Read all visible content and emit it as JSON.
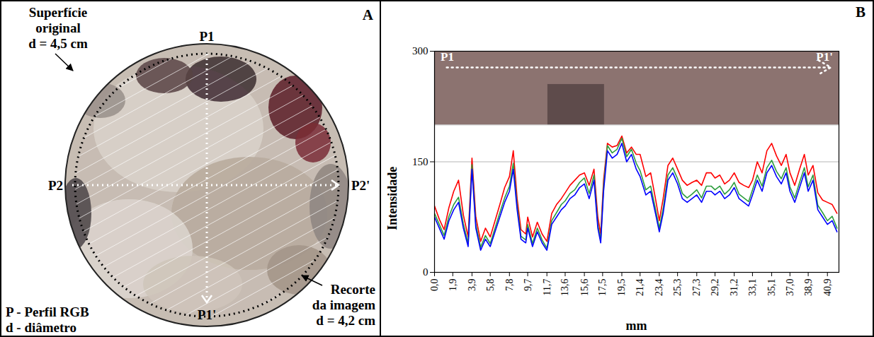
{
  "diagram": {
    "panel_label": "A",
    "original_surface": {
      "lines": [
        "Superfície",
        "original",
        "d = 4,5 cm"
      ]
    },
    "image_crop": {
      "lines": [
        "Recorte",
        "da imagem",
        "d = 4,2 cm"
      ]
    },
    "profiles": [
      {
        "start": "P1",
        "end": "P1'",
        "direction": "vertical"
      },
      {
        "start": "P2",
        "end": "P2'",
        "direction": "horizontal"
      }
    ],
    "legend_lines": [
      "P - Perfil RGB",
      "d - diâmetro"
    ]
  },
  "chart_data": {
    "type": "line",
    "panel_label": "B",
    "x_label": "mm",
    "y_label": "Intensidade",
    "x": [
      0.0,
      0.5,
      1.0,
      1.5,
      2.0,
      2.5,
      3.0,
      3.5,
      3.9,
      4.3,
      4.8,
      5.3,
      5.8,
      6.3,
      6.8,
      7.3,
      7.8,
      8.2,
      8.6,
      9.0,
      9.5,
      9.7,
      10.2,
      10.7,
      11.2,
      11.7,
      12.2,
      12.7,
      13.2,
      13.6,
      14.1,
      14.6,
      15.1,
      15.6,
      16.1,
      16.6,
      17.0,
      17.3,
      17.6,
      18.0,
      18.5,
      19.0,
      19.5,
      20.0,
      20.5,
      21.0,
      21.4,
      22.0,
      22.5,
      23.0,
      23.4,
      23.8,
      24.3,
      24.8,
      25.3,
      25.8,
      26.3,
      26.8,
      27.3,
      27.8,
      28.3,
      28.8,
      29.2,
      29.7,
      30.2,
      30.7,
      31.2,
      31.7,
      32.2,
      32.7,
      33.1,
      33.6,
      34.1,
      34.6,
      35.1,
      35.6,
      36.1,
      36.6,
      37.0,
      37.5,
      38.0,
      38.5,
      38.9,
      39.4,
      39.9,
      40.4,
      40.9,
      41.4,
      41.9
    ],
    "series": [
      {
        "color": "#ff0000",
        "values": [
          90,
          72,
          58,
          88,
          110,
          125,
          78,
          48,
          155,
          75,
          42,
          60,
          48,
          70,
          92,
          115,
          130,
          165,
          100,
          58,
          52,
          75,
          48,
          68,
          52,
          42,
          80,
          92,
          100,
          108,
          118,
          125,
          132,
          135,
          118,
          140,
          75,
          52,
          125,
          175,
          170,
          172,
          185,
          162,
          170,
          160,
          160,
          130,
          135,
          100,
          70,
          100,
          145,
          155,
          140,
          125,
          118,
          122,
          125,
          118,
          135,
          135,
          128,
          132,
          120,
          125,
          135,
          122,
          118,
          115,
          125,
          150,
          135,
          165,
          175,
          158,
          145,
          160,
          135,
          118,
          140,
          160,
          132,
          145,
          108,
          98,
          95,
          92,
          80
        ]
      },
      {
        "color": "#2e9e3e",
        "values": [
          80,
          65,
          50,
          76,
          92,
          102,
          66,
          39,
          146,
          65,
          34,
          50,
          39,
          60,
          81,
          101,
          117,
          148,
          91,
          49,
          44,
          65,
          39,
          60,
          44,
          33,
          70,
          81,
          92,
          97,
          107,
          112,
          122,
          128,
          107,
          132,
          65,
          44,
          117,
          172,
          162,
          167,
          182,
          157,
          167,
          148,
          138,
          112,
          117,
          86,
          60,
          86,
          132,
          142,
          127,
          107,
          101,
          106,
          112,
          101,
          117,
          117,
          112,
          117,
          106,
          112,
          122,
          106,
          101,
          96,
          112,
          132,
          117,
          142,
          152,
          137,
          127,
          142,
          116,
          101,
          122,
          142,
          116,
          132,
          91,
          81,
          70,
          76,
          60
        ]
      },
      {
        "color": "#0000ff",
        "values": [
          75,
          60,
          45,
          70,
          85,
          95,
          60,
          35,
          140,
          60,
          30,
          45,
          35,
          55,
          75,
          95,
          110,
          140,
          85,
          45,
          40,
          60,
          35,
          55,
          40,
          30,
          65,
          75,
          85,
          90,
          100,
          105,
          115,
          120,
          100,
          125,
          60,
          40,
          110,
          165,
          155,
          160,
          175,
          150,
          160,
          140,
          130,
          105,
          110,
          80,
          55,
          80,
          125,
          135,
          120,
          100,
          95,
          100,
          105,
          95,
          110,
          110,
          105,
          110,
          100,
          105,
          115,
          100,
          95,
          90,
          105,
          125,
          110,
          135,
          145,
          130,
          120,
          135,
          110,
          95,
          115,
          135,
          110,
          125,
          85,
          75,
          65,
          70,
          55
        ]
      }
    ],
    "xlim": [
      0,
      42.1
    ],
    "ylim": [
      0,
      300
    ],
    "xticks": [
      {
        "value": 0,
        "label": "0,0"
      },
      {
        "value": 1.9,
        "label": "1,9"
      },
      {
        "value": 3.9,
        "label": "3,9"
      },
      {
        "value": 5.8,
        "label": "5,8"
      },
      {
        "value": 7.8,
        "label": "7,8"
      },
      {
        "value": 9.7,
        "label": "9,7"
      },
      {
        "value": 11.7,
        "label": "11,7"
      },
      {
        "value": 13.6,
        "label": "13,6"
      },
      {
        "value": 15.6,
        "label": "15,6"
      },
      {
        "value": 17.5,
        "label": "17,5"
      },
      {
        "value": 19.5,
        "label": "19,5"
      },
      {
        "value": 21.4,
        "label": "21,4"
      },
      {
        "value": 23.4,
        "label": "23,4"
      },
      {
        "value": 25.3,
        "label": "25,3"
      },
      {
        "value": 27.3,
        "label": "27,3"
      },
      {
        "value": 29.2,
        "label": "29,2"
      },
      {
        "value": 31.2,
        "label": "31,2"
      },
      {
        "value": 33.1,
        "label": "33,1"
      },
      {
        "value": 35.1,
        "label": "35,1"
      },
      {
        "value": 37.0,
        "label": "37,0"
      },
      {
        "value": 38.9,
        "label": "38,9"
      },
      {
        "value": 40.9,
        "label": "40,9"
      }
    ],
    "yticks": [
      0,
      150,
      300
    ],
    "grid": true,
    "image_strip": {
      "ylim": [
        200,
        300
      ],
      "start_label": "P1",
      "end_label": "P1'"
    }
  }
}
